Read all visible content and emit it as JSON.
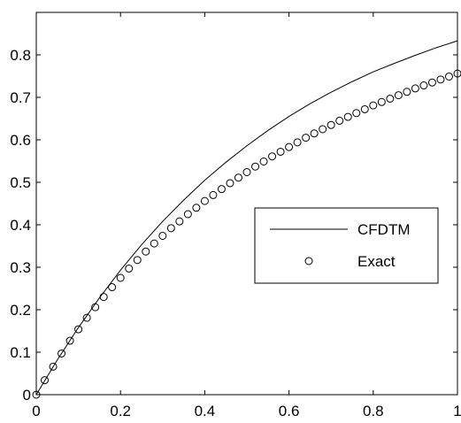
{
  "chart_data": {
    "type": "line",
    "title": "",
    "xlabel": "",
    "ylabel": "",
    "xlim": [
      0,
      1
    ],
    "ylim": [
      0,
      0.9
    ],
    "xticks": [
      0,
      0.2,
      0.4,
      0.6,
      0.8,
      1
    ],
    "xtick_labels": [
      "0",
      "0.2",
      "0.4",
      "0.6",
      "0.8",
      "1"
    ],
    "yticks": [
      0,
      0.1,
      0.2,
      0.3,
      0.4,
      0.5,
      0.6,
      0.7,
      0.8
    ],
    "ytick_labels": [
      "0",
      "0.1",
      "0.2",
      "0.3",
      "0.4",
      "0.5",
      "0.6",
      "0.7",
      "0.8"
    ],
    "grid": false,
    "legend_position": "center-right",
    "series": [
      {
        "name": "CFDTM",
        "style": "solid-line",
        "color": "#000000",
        "x": [
          0,
          0.05,
          0.1,
          0.15,
          0.2,
          0.25,
          0.3,
          0.35,
          0.4,
          0.45,
          0.5,
          0.55,
          0.6,
          0.65,
          0.7,
          0.75,
          0.8,
          0.85,
          0.9,
          0.95,
          1.0
        ],
        "y": [
          0,
          0.082,
          0.158,
          0.228,
          0.293,
          0.353,
          0.408,
          0.458,
          0.505,
          0.547,
          0.586,
          0.622,
          0.655,
          0.685,
          0.712,
          0.737,
          0.76,
          0.78,
          0.799,
          0.817,
          0.833
        ]
      },
      {
        "name": "Exact",
        "style": "open-circle-markers",
        "color": "#000000",
        "x": [
          0,
          0.02,
          0.04,
          0.06,
          0.08,
          0.1,
          0.12,
          0.14,
          0.16,
          0.18,
          0.2,
          0.22,
          0.24,
          0.26,
          0.28,
          0.3,
          0.32,
          0.34,
          0.36,
          0.38,
          0.4,
          0.42,
          0.44,
          0.46,
          0.48,
          0.5,
          0.52,
          0.54,
          0.56,
          0.58,
          0.6,
          0.62,
          0.64,
          0.66,
          0.68,
          0.7,
          0.72,
          0.74,
          0.76,
          0.78,
          0.8,
          0.82,
          0.84,
          0.86,
          0.88,
          0.9,
          0.92,
          0.94,
          0.96,
          0.98,
          1.0
        ],
        "y": [
          0.0,
          0.034,
          0.066,
          0.097,
          0.127,
          0.154,
          0.181,
          0.206,
          0.23,
          0.253,
          0.275,
          0.297,
          0.317,
          0.337,
          0.356,
          0.374,
          0.392,
          0.408,
          0.425,
          0.44,
          0.456,
          0.47,
          0.484,
          0.498,
          0.511,
          0.524,
          0.537,
          0.549,
          0.561,
          0.572,
          0.583,
          0.594,
          0.605,
          0.615,
          0.625,
          0.635,
          0.645,
          0.654,
          0.663,
          0.672,
          0.681,
          0.689,
          0.697,
          0.705,
          0.713,
          0.721,
          0.728,
          0.735,
          0.742,
          0.749,
          0.756
        ]
      }
    ]
  }
}
